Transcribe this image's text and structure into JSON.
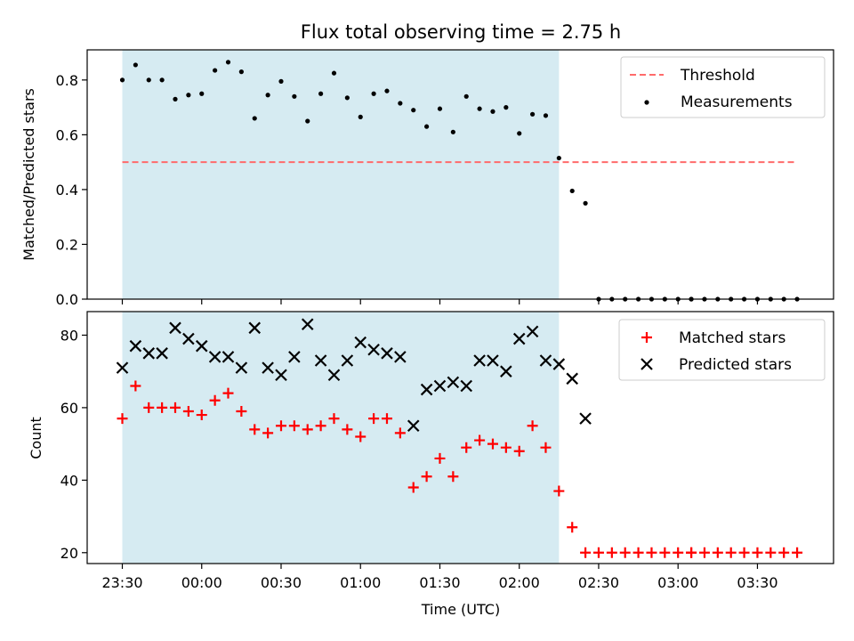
{
  "title": "Flux total observing time = 2.75 h",
  "xlabel": "Time (UTC)",
  "chart_data": [
    {
      "type": "scatter",
      "ylabel": "Matched/Predicted stars",
      "ylim": [
        0,
        0.91
      ],
      "yticks": [
        "0.0",
        "0.2",
        "0.4",
        "0.6",
        "0.8"
      ],
      "grid": false,
      "legend_position": "top-right",
      "shaded_interval": {
        "from": "23:30",
        "to": "02:15",
        "color": "#add8e6"
      },
      "threshold": {
        "name": "Threshold",
        "value": 0.5,
        "from": "23:30",
        "to": "03:45",
        "color": "#ff6b6b"
      },
      "series": [
        {
          "name": "Measurements",
          "color": "#000000",
          "marker": "dot",
          "times": [
            "23:30",
            "23:35",
            "23:40",
            "23:45",
            "23:50",
            "23:55",
            "00:00",
            "00:05",
            "00:10",
            "00:15",
            "00:20",
            "00:25",
            "00:30",
            "00:35",
            "00:40",
            "00:45",
            "00:50",
            "00:55",
            "01:00",
            "01:05",
            "01:10",
            "01:15",
            "01:20",
            "01:25",
            "01:30",
            "01:35",
            "01:40",
            "01:45",
            "01:50",
            "01:55",
            "02:00",
            "02:05",
            "02:10",
            "02:15",
            "02:20",
            "02:25",
            "02:30",
            "02:35",
            "02:40",
            "02:45",
            "02:50",
            "02:55",
            "03:00",
            "03:05",
            "03:05",
            "03:10",
            "03:15",
            "03:20",
            "03:25",
            "03:30",
            "03:35",
            "03:40",
            "03:45"
          ],
          "values": [
            0.8,
            0.855,
            0.8,
            0.8,
            0.73,
            0.745,
            0.75,
            0.835,
            0.865,
            0.83,
            0.66,
            0.745,
            0.795,
            0.74,
            0.65,
            0.75,
            0.825,
            0.735,
            0.665,
            0.75,
            0.76,
            0.715,
            0.69,
            0.63,
            0.695,
            0.61,
            0.74,
            0.695,
            0.685,
            0.7,
            0.605,
            0.675,
            0.67,
            0.515,
            0.395,
            0.35,
            0,
            0,
            0,
            0,
            0,
            0,
            0,
            0,
            0,
            0,
            0,
            0,
            0,
            0,
            0,
            0,
            0
          ]
        }
      ]
    },
    {
      "type": "scatter",
      "ylabel": "Count",
      "ylim": [
        17,
        86.5
      ],
      "yticks": [
        "20",
        "40",
        "60",
        "80"
      ],
      "xticks": [
        "23:30",
        "00:00",
        "00:30",
        "01:00",
        "01:30",
        "02:00",
        "02:30",
        "03:00",
        "03:30"
      ],
      "grid": false,
      "legend_position": "top-right",
      "shaded_interval": {
        "from": "23:30",
        "to": "02:15",
        "color": "#add8e6"
      },
      "series": [
        {
          "name": "Matched stars",
          "color": "#ff0000",
          "marker": "plus",
          "times": [
            "23:30",
            "23:35",
            "23:40",
            "23:45",
            "23:50",
            "23:55",
            "00:00",
            "00:05",
            "00:10",
            "00:15",
            "00:20",
            "00:25",
            "00:30",
            "00:35",
            "00:40",
            "00:45",
            "00:50",
            "00:55",
            "01:00",
            "01:05",
            "01:10",
            "01:15",
            "01:20",
            "01:25",
            "01:30",
            "01:35",
            "01:40",
            "01:45",
            "01:50",
            "01:55",
            "02:00",
            "02:05",
            "02:10",
            "02:15",
            "02:20",
            "02:25",
            "02:30",
            "02:35",
            "02:40",
            "02:45",
            "02:50",
            "02:55",
            "03:00",
            "03:05",
            "03:05",
            "03:10",
            "03:15",
            "03:20",
            "03:25",
            "03:30",
            "03:35",
            "03:40",
            "03:45"
          ],
          "values": [
            57,
            66,
            60,
            60,
            60,
            59,
            58,
            62,
            64,
            59,
            54,
            53,
            55,
            55,
            54,
            55,
            57,
            54,
            52,
            57,
            57,
            53,
            38,
            41,
            46,
            41,
            49,
            51,
            50,
            49,
            48,
            55,
            49,
            37,
            27,
            20,
            20,
            20,
            20,
            20,
            20,
            20,
            20,
            20,
            20,
            20,
            20,
            20,
            20,
            20,
            20,
            20,
            20
          ]
        },
        {
          "name": "Predicted stars",
          "color": "#000000",
          "marker": "cross",
          "times": [
            "23:30",
            "23:35",
            "23:40",
            "23:45",
            "23:50",
            "23:55",
            "00:00",
            "00:05",
            "00:10",
            "00:15",
            "00:20",
            "00:25",
            "00:30",
            "00:35",
            "00:40",
            "00:45",
            "00:50",
            "00:55",
            "01:00",
            "01:05",
            "01:10",
            "01:15",
            "01:20",
            "01:25",
            "01:30",
            "01:35",
            "01:40",
            "01:45",
            "01:50",
            "01:55",
            "02:00",
            "02:05",
            "02:10",
            "02:15",
            "02:20",
            "02:25"
          ],
          "values": [
            71,
            77,
            75,
            75,
            82,
            79,
            77,
            74,
            74,
            71,
            82,
            71,
            69,
            74,
            83,
            73,
            69,
            73,
            78,
            76,
            75,
            74,
            55,
            65,
            66,
            67,
            66,
            73,
            73,
            70,
            79,
            81,
            73,
            72,
            68,
            57
          ]
        }
      ]
    }
  ]
}
